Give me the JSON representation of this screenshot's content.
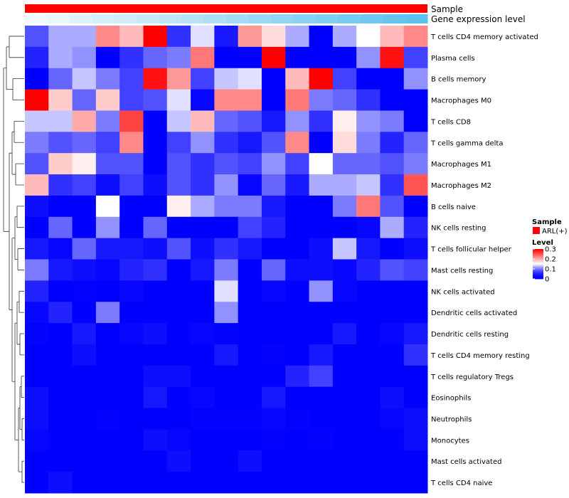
{
  "chart_data": {
    "type": "heatmap",
    "title": "",
    "xlabel": "",
    "ylabel": "",
    "annotation_tracks": [
      {
        "name": "Sample",
        "color": "#ff0000"
      },
      {
        "name": "Gene expression level"
      }
    ],
    "gene_expression_level_track": [
      0.0,
      0.06,
      0.12,
      0.18,
      0.24,
      0.29,
      0.35,
      0.41,
      0.47,
      0.53,
      0.59,
      0.65,
      0.71,
      0.76,
      0.82,
      0.88,
      0.94,
      1.0
    ],
    "rows": [
      "T cells CD4 memory activated",
      "Plasma cells",
      "B cells memory",
      "Macrophages M0",
      "T cells CD8",
      "T cells gamma delta",
      "Macrophages M1",
      "Macrophages M2",
      "B cells naive",
      "NK cells resting",
      "T cells follicular helper",
      "Mast cells resting",
      "NK cells activated",
      "Dendritic cells activated",
      "Dendritic cells resting",
      "T cells CD4 memory resting",
      "T cells regulatory  Tregs",
      "Eosinophils",
      "Neutrophils",
      "Monocytes",
      "Mast cells activated",
      "T cells CD4 naive"
    ],
    "values": [
      [
        0.08,
        0.12,
        0.12,
        0.22,
        0.19,
        0.3,
        0.06,
        0.14,
        0.04,
        0.21,
        0.17,
        0.12,
        0.0,
        0.12,
        0.15,
        0.19,
        0.22
      ],
      [
        0.05,
        0.12,
        0.11,
        0.0,
        0.06,
        0.09,
        0.1,
        0.23,
        0.0,
        0.0,
        0.3,
        0.0,
        0.0,
        0.0,
        0.11,
        0.29,
        0.07
      ],
      [
        0.0,
        0.09,
        0.13,
        0.1,
        0.07,
        0.29,
        0.21,
        0.07,
        0.13,
        0.14,
        0.0,
        0.19,
        0.3,
        0.07,
        0.0,
        0.0,
        0.11
      ],
      [
        0.3,
        0.18,
        0.09,
        0.18,
        0.07,
        0.08,
        0.14,
        0.02,
        0.22,
        0.22,
        0.0,
        0.23,
        0.1,
        0.09,
        0.06,
        0.0,
        0.0
      ],
      [
        0.13,
        0.13,
        0.2,
        0.1,
        0.26,
        0.0,
        0.13,
        0.19,
        0.09,
        0.08,
        0.04,
        0.11,
        0.06,
        0.16,
        0.11,
        0.1,
        0.0
      ],
      [
        0.1,
        0.08,
        0.09,
        0.07,
        0.22,
        0.0,
        0.07,
        0.11,
        0.06,
        0.04,
        0.08,
        0.22,
        0.0,
        0.17,
        0.1,
        0.05,
        0.09
      ],
      [
        0.08,
        0.18,
        0.16,
        0.08,
        0.08,
        0.0,
        0.08,
        0.06,
        0.08,
        0.07,
        0.11,
        0.07,
        0.15,
        0.09,
        0.09,
        0.08,
        0.1
      ],
      [
        0.19,
        0.06,
        0.07,
        0.03,
        0.07,
        0.03,
        0.08,
        0.06,
        0.11,
        0.02,
        0.09,
        0.04,
        0.12,
        0.12,
        0.13,
        0.06,
        0.25
      ],
      [
        0.03,
        0.0,
        0.0,
        0.15,
        0.0,
        0.0,
        0.16,
        0.12,
        0.1,
        0.1,
        0.04,
        0.0,
        0.0,
        0.1,
        0.23,
        0.08,
        0.0
      ],
      [
        0.0,
        0.09,
        0.0,
        0.11,
        0.0,
        0.09,
        0.0,
        0.0,
        0.0,
        0.07,
        0.05,
        0.0,
        0.0,
        0.0,
        0.02,
        0.12,
        0.05
      ],
      [
        0.04,
        0.02,
        0.09,
        0.04,
        0.04,
        0.03,
        0.08,
        0.03,
        0.06,
        0.04,
        0.0,
        0.0,
        0.03,
        0.13,
        0.04,
        0.0,
        0.03
      ],
      [
        0.1,
        0.04,
        0.03,
        0.02,
        0.05,
        0.06,
        0.0,
        0.04,
        0.1,
        0.0,
        0.09,
        0.03,
        0.03,
        0.02,
        0.05,
        0.08,
        0.07
      ],
      [
        0.05,
        0.0,
        0.01,
        0.0,
        0.02,
        0.0,
        0.0,
        0.0,
        0.14,
        0.0,
        0.02,
        0.0,
        0.11,
        0.02,
        0.0,
        0.0,
        0.0
      ],
      [
        0.02,
        0.05,
        0.0,
        0.1,
        0.0,
        0.0,
        0.0,
        0.0,
        0.11,
        0.0,
        0.0,
        0.0,
        0.0,
        0.0,
        0.0,
        0.0,
        0.0
      ],
      [
        0.01,
        0.0,
        0.04,
        0.0,
        0.02,
        0.03,
        0.0,
        0.02,
        0.01,
        0.0,
        0.0,
        0.0,
        0.0,
        0.04,
        0.0,
        0.02,
        0.04
      ],
      [
        0.0,
        0.0,
        0.03,
        0.0,
        0.0,
        0.0,
        0.0,
        0.0,
        0.04,
        0.0,
        0.01,
        0.0,
        0.04,
        0.0,
        0.0,
        0.0,
        0.06
      ],
      [
        0.0,
        0.0,
        0.0,
        0.0,
        0.0,
        0.03,
        0.03,
        0.0,
        0.0,
        0.0,
        0.0,
        0.05,
        0.07,
        0.0,
        0.0,
        0.0,
        0.0
      ],
      [
        0.03,
        0.0,
        0.0,
        0.0,
        0.0,
        0.04,
        0.0,
        0.02,
        0.0,
        0.0,
        0.04,
        0.0,
        0.0,
        0.0,
        0.0,
        0.03,
        0.0
      ],
      [
        0.03,
        0.0,
        0.0,
        0.01,
        0.0,
        0.0,
        0.0,
        0.01,
        0.01,
        0.01,
        0.02,
        0.01,
        0.0,
        0.0,
        0.0,
        0.02,
        0.03
      ],
      [
        0.02,
        0.0,
        0.0,
        0.0,
        0.0,
        0.03,
        0.02,
        0.0,
        0.0,
        0.0,
        0.01,
        0.0,
        0.01,
        0.0,
        0.0,
        0.0,
        0.03
      ],
      [
        0.0,
        0.0,
        0.0,
        0.0,
        0.0,
        0.0,
        0.03,
        0.0,
        0.0,
        0.03,
        0.0,
        0.0,
        0.0,
        0.0,
        0.0,
        0.0,
        0.0
      ],
      [
        0.0,
        0.03,
        0.0,
        0.0,
        0.0,
        0.0,
        0.0,
        0.0,
        0.0,
        0.0,
        0.0,
        0.0,
        0.0,
        0.0,
        0.0,
        0.0,
        0.0
      ]
    ],
    "color_scale": {
      "min": 0,
      "mid": 0.15,
      "max": 0.3,
      "low": "#0000ff",
      "mid_color": "#ffffff",
      "high": "#ff0000"
    },
    "legend": {
      "position": "right",
      "sample_title": "Sample",
      "sample_entry": "ARL(+)",
      "level_title": "Level",
      "level_ticks": [
        {
          "value": 0.3,
          "label": "0.3"
        },
        {
          "value": 0.2,
          "label": "0.2"
        },
        {
          "value": 0.1,
          "label": "0.1"
        },
        {
          "value": 0,
          "label": "0"
        }
      ]
    },
    "dendrogram": "rows"
  }
}
